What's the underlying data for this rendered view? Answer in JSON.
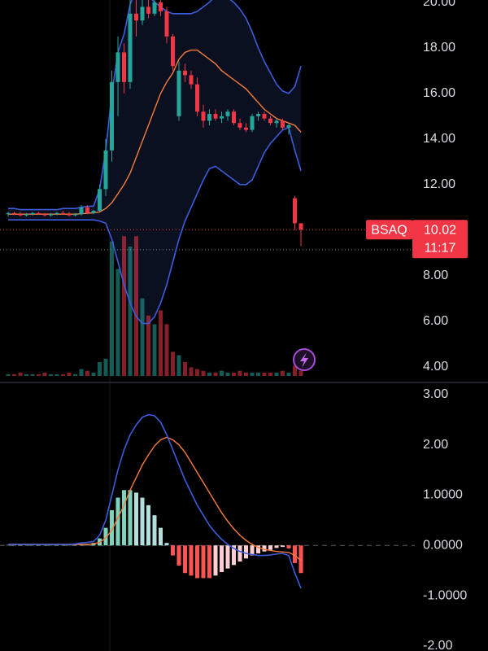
{
  "chart_data": [
    {
      "type": "candlestick",
      "symbol": "BSAQ",
      "last_price": 10.02,
      "countdown": "11:17",
      "reference_line": 9.14,
      "ylim": [
        3.6,
        20.1
      ],
      "yticks": [
        {
          "value": 20,
          "label": "20.00"
        },
        {
          "value": 18,
          "label": "18.00"
        },
        {
          "value": 16,
          "label": "16.00"
        },
        {
          "value": 14,
          "label": "14.00"
        },
        {
          "value": 12,
          "label": "12.00"
        },
        {
          "value": 10,
          "label": "10.00"
        },
        {
          "value": 8,
          "label": "8.00"
        },
        {
          "value": 6,
          "label": "6.00"
        },
        {
          "value": 4,
          "label": "4.00"
        }
      ],
      "grid": false,
      "up_color": "#26a69a",
      "down_color": "#f23645",
      "band_color": "#3d5cdb",
      "mid_color": "#f57c3a",
      "open": [
        10.7,
        10.75,
        10.7,
        10.65,
        10.7,
        10.75,
        10.7,
        10.65,
        10.7,
        10.75,
        10.7,
        10.65,
        10.7,
        11.0,
        10.75,
        10.85,
        11.8,
        13.5,
        16.5,
        17.8,
        16.5,
        19.5,
        19.2,
        19.8,
        19.5,
        20.0,
        19.6,
        18.5,
        15.0,
        17.0,
        16.8,
        16.4,
        15.2,
        14.8,
        15.1,
        14.9,
        15.0,
        15.2,
        14.7,
        14.5,
        14.4,
        15.0,
        15.1,
        14.9,
        14.7,
        14.8,
        14.5,
        11.4,
        10.3
      ],
      "high": [
        10.8,
        10.8,
        10.8,
        10.75,
        10.8,
        10.8,
        10.75,
        10.75,
        10.8,
        10.85,
        10.8,
        10.75,
        11.1,
        11.1,
        10.9,
        12.0,
        14.0,
        17.0,
        18.5,
        18.2,
        20.1,
        20.1,
        20.1,
        20.1,
        20.1,
        20.1,
        19.8,
        18.6,
        17.4,
        17.3,
        17.0,
        16.7,
        15.5,
        15.3,
        15.3,
        15.2,
        15.3,
        15.3,
        14.9,
        14.7,
        15.1,
        15.2,
        15.2,
        15.0,
        14.9,
        14.9,
        14.7,
        11.5,
        10.3
      ],
      "low": [
        10.6,
        10.65,
        10.6,
        10.6,
        10.65,
        10.7,
        10.6,
        10.6,
        10.65,
        10.7,
        10.6,
        10.6,
        10.65,
        10.7,
        10.7,
        10.8,
        11.5,
        13.0,
        15.0,
        16.0,
        16.2,
        18.5,
        19.0,
        19.3,
        19.4,
        19.4,
        18.2,
        17.0,
        14.8,
        16.5,
        16.2,
        15.0,
        14.5,
        14.6,
        14.8,
        14.7,
        14.8,
        14.6,
        14.4,
        14.3,
        14.3,
        14.8,
        14.8,
        14.6,
        14.5,
        14.4,
        14.2,
        10.0,
        9.3
      ],
      "close": [
        10.75,
        10.7,
        10.65,
        10.7,
        10.75,
        10.7,
        10.65,
        10.7,
        10.75,
        10.7,
        10.65,
        10.7,
        11.0,
        10.75,
        10.85,
        11.8,
        13.5,
        16.5,
        17.8,
        16.5,
        19.5,
        19.2,
        19.8,
        19.5,
        20.0,
        19.6,
        18.5,
        17.2,
        17.0,
        16.8,
        16.4,
        15.2,
        14.8,
        15.1,
        14.9,
        15.0,
        15.2,
        14.7,
        14.5,
        14.4,
        15.0,
        15.1,
        14.9,
        14.7,
        14.8,
        14.5,
        14.6,
        10.3,
        10.02
      ],
      "volume": [
        1,
        1,
        2,
        1,
        1,
        1,
        2,
        1,
        1,
        1,
        2,
        1,
        4,
        3,
        2,
        8,
        10,
        78,
        62,
        81,
        75,
        81,
        45,
        35,
        30,
        38,
        30,
        14,
        12,
        8,
        5,
        4,
        3,
        2,
        2,
        3,
        2,
        2,
        3,
        2,
        2,
        2,
        2,
        2,
        2,
        3,
        2,
        6,
        3
      ],
      "volume_lim": [
        0,
        100
      ],
      "bb_upper": [
        10.95,
        10.95,
        10.9,
        10.9,
        10.9,
        10.9,
        10.9,
        10.9,
        10.9,
        10.95,
        10.95,
        10.95,
        11.0,
        11.05,
        11.05,
        11.8,
        13.5,
        16.0,
        17.8,
        18.6,
        19.9,
        20.6,
        20.6,
        20.3,
        20.0,
        19.8,
        19.6,
        19.5,
        19.5,
        19.5,
        19.5,
        19.6,
        19.8,
        20.0,
        20.3,
        20.3,
        20.2,
        20.0,
        19.7,
        19.3,
        18.7,
        18.0,
        17.4,
        16.9,
        16.4,
        16.1,
        16.0,
        16.3,
        17.2
      ],
      "bb_mid": [
        10.7,
        10.7,
        10.7,
        10.7,
        10.7,
        10.7,
        10.7,
        10.7,
        10.7,
        10.7,
        10.7,
        10.7,
        10.72,
        10.74,
        10.76,
        10.8,
        10.95,
        11.2,
        11.6,
        12.0,
        12.5,
        13.2,
        13.9,
        14.6,
        15.3,
        16.0,
        16.5,
        16.9,
        17.5,
        17.8,
        17.9,
        17.9,
        17.7,
        17.5,
        17.3,
        17.0,
        16.8,
        16.6,
        16.4,
        16.2,
        15.9,
        15.6,
        15.3,
        15.1,
        14.9,
        14.8,
        14.7,
        14.6,
        14.3
      ],
      "bb_lower": [
        10.45,
        10.45,
        10.45,
        10.45,
        10.45,
        10.45,
        10.45,
        10.45,
        10.45,
        10.45,
        10.45,
        10.45,
        10.45,
        10.45,
        10.45,
        10.4,
        10.3,
        9.6,
        8.6,
        7.6,
        6.8,
        6.2,
        5.9,
        5.9,
        6.2,
        6.8,
        7.6,
        8.6,
        9.6,
        10.4,
        11.0,
        11.6,
        12.2,
        12.7,
        12.8,
        12.6,
        12.4,
        12.2,
        12.0,
        12.0,
        12.2,
        12.8,
        13.4,
        13.8,
        14.1,
        14.4,
        14.5,
        13.5,
        12.6
      ]
    },
    {
      "type": "macd",
      "ylim": [
        -2.1,
        3.16
      ],
      "yticks": [
        {
          "value": 3,
          "label": "3.00"
        },
        {
          "value": 2,
          "label": "2.00"
        },
        {
          "value": 1,
          "label": "1.0000"
        },
        {
          "value": 0,
          "label": "0.0000"
        },
        {
          "value": -1,
          "label": "-1.0000"
        },
        {
          "value": -2,
          "label": "-2.00"
        }
      ],
      "grid": false,
      "macd_color": "#3d5cdb",
      "signal_color": "#f57c3a",
      "hist_colors": [
        "#7fd3bd",
        "#b2dfdb",
        "#ff5252",
        "#ffcdd2"
      ],
      "macd": [
        0.02,
        0.02,
        0.02,
        0.02,
        0.02,
        0.02,
        0.02,
        0.02,
        0.02,
        0.02,
        0.02,
        0.03,
        0.05,
        0.06,
        0.08,
        0.2,
        0.5,
        1.0,
        1.5,
        1.9,
        2.2,
        2.4,
        2.55,
        2.6,
        2.58,
        2.45,
        2.2,
        1.9,
        1.6,
        1.3,
        1.05,
        0.8,
        0.6,
        0.4,
        0.25,
        0.12,
        0.02,
        -0.06,
        -0.12,
        -0.16,
        -0.18,
        -0.2,
        -0.2,
        -0.19,
        -0.17,
        -0.16,
        -0.2,
        -0.55,
        -0.85
      ],
      "signal": [
        0.02,
        0.02,
        0.02,
        0.02,
        0.02,
        0.02,
        0.02,
        0.02,
        0.02,
        0.02,
        0.02,
        0.02,
        0.02,
        0.02,
        0.03,
        0.06,
        0.15,
        0.3,
        0.55,
        0.8,
        1.1,
        1.35,
        1.6,
        1.8,
        1.98,
        2.1,
        2.15,
        2.1,
        2.0,
        1.85,
        1.65,
        1.45,
        1.25,
        1.05,
        0.85,
        0.65,
        0.48,
        0.33,
        0.2,
        0.1,
        0.02,
        -0.04,
        -0.08,
        -0.1,
        -0.12,
        -0.13,
        -0.14,
        -0.2,
        -0.3
      ],
      "histogram": [
        0.01,
        0.01,
        0.01,
        0.01,
        0.01,
        0.01,
        0.01,
        0.01,
        0.01,
        0.01,
        0.01,
        0.01,
        0.01,
        0.01,
        0.05,
        0.14,
        0.35,
        0.7,
        0.95,
        1.1,
        1.1,
        1.05,
        0.95,
        0.8,
        0.6,
        0.35,
        0.05,
        -0.2,
        -0.4,
        -0.55,
        -0.6,
        -0.65,
        -0.65,
        -0.65,
        -0.6,
        -0.53,
        -0.46,
        -0.39,
        -0.32,
        -0.26,
        -0.2,
        -0.16,
        -0.12,
        -0.09,
        -0.05,
        -0.03,
        -0.06,
        -0.35,
        -0.55
      ]
    }
  ]
}
